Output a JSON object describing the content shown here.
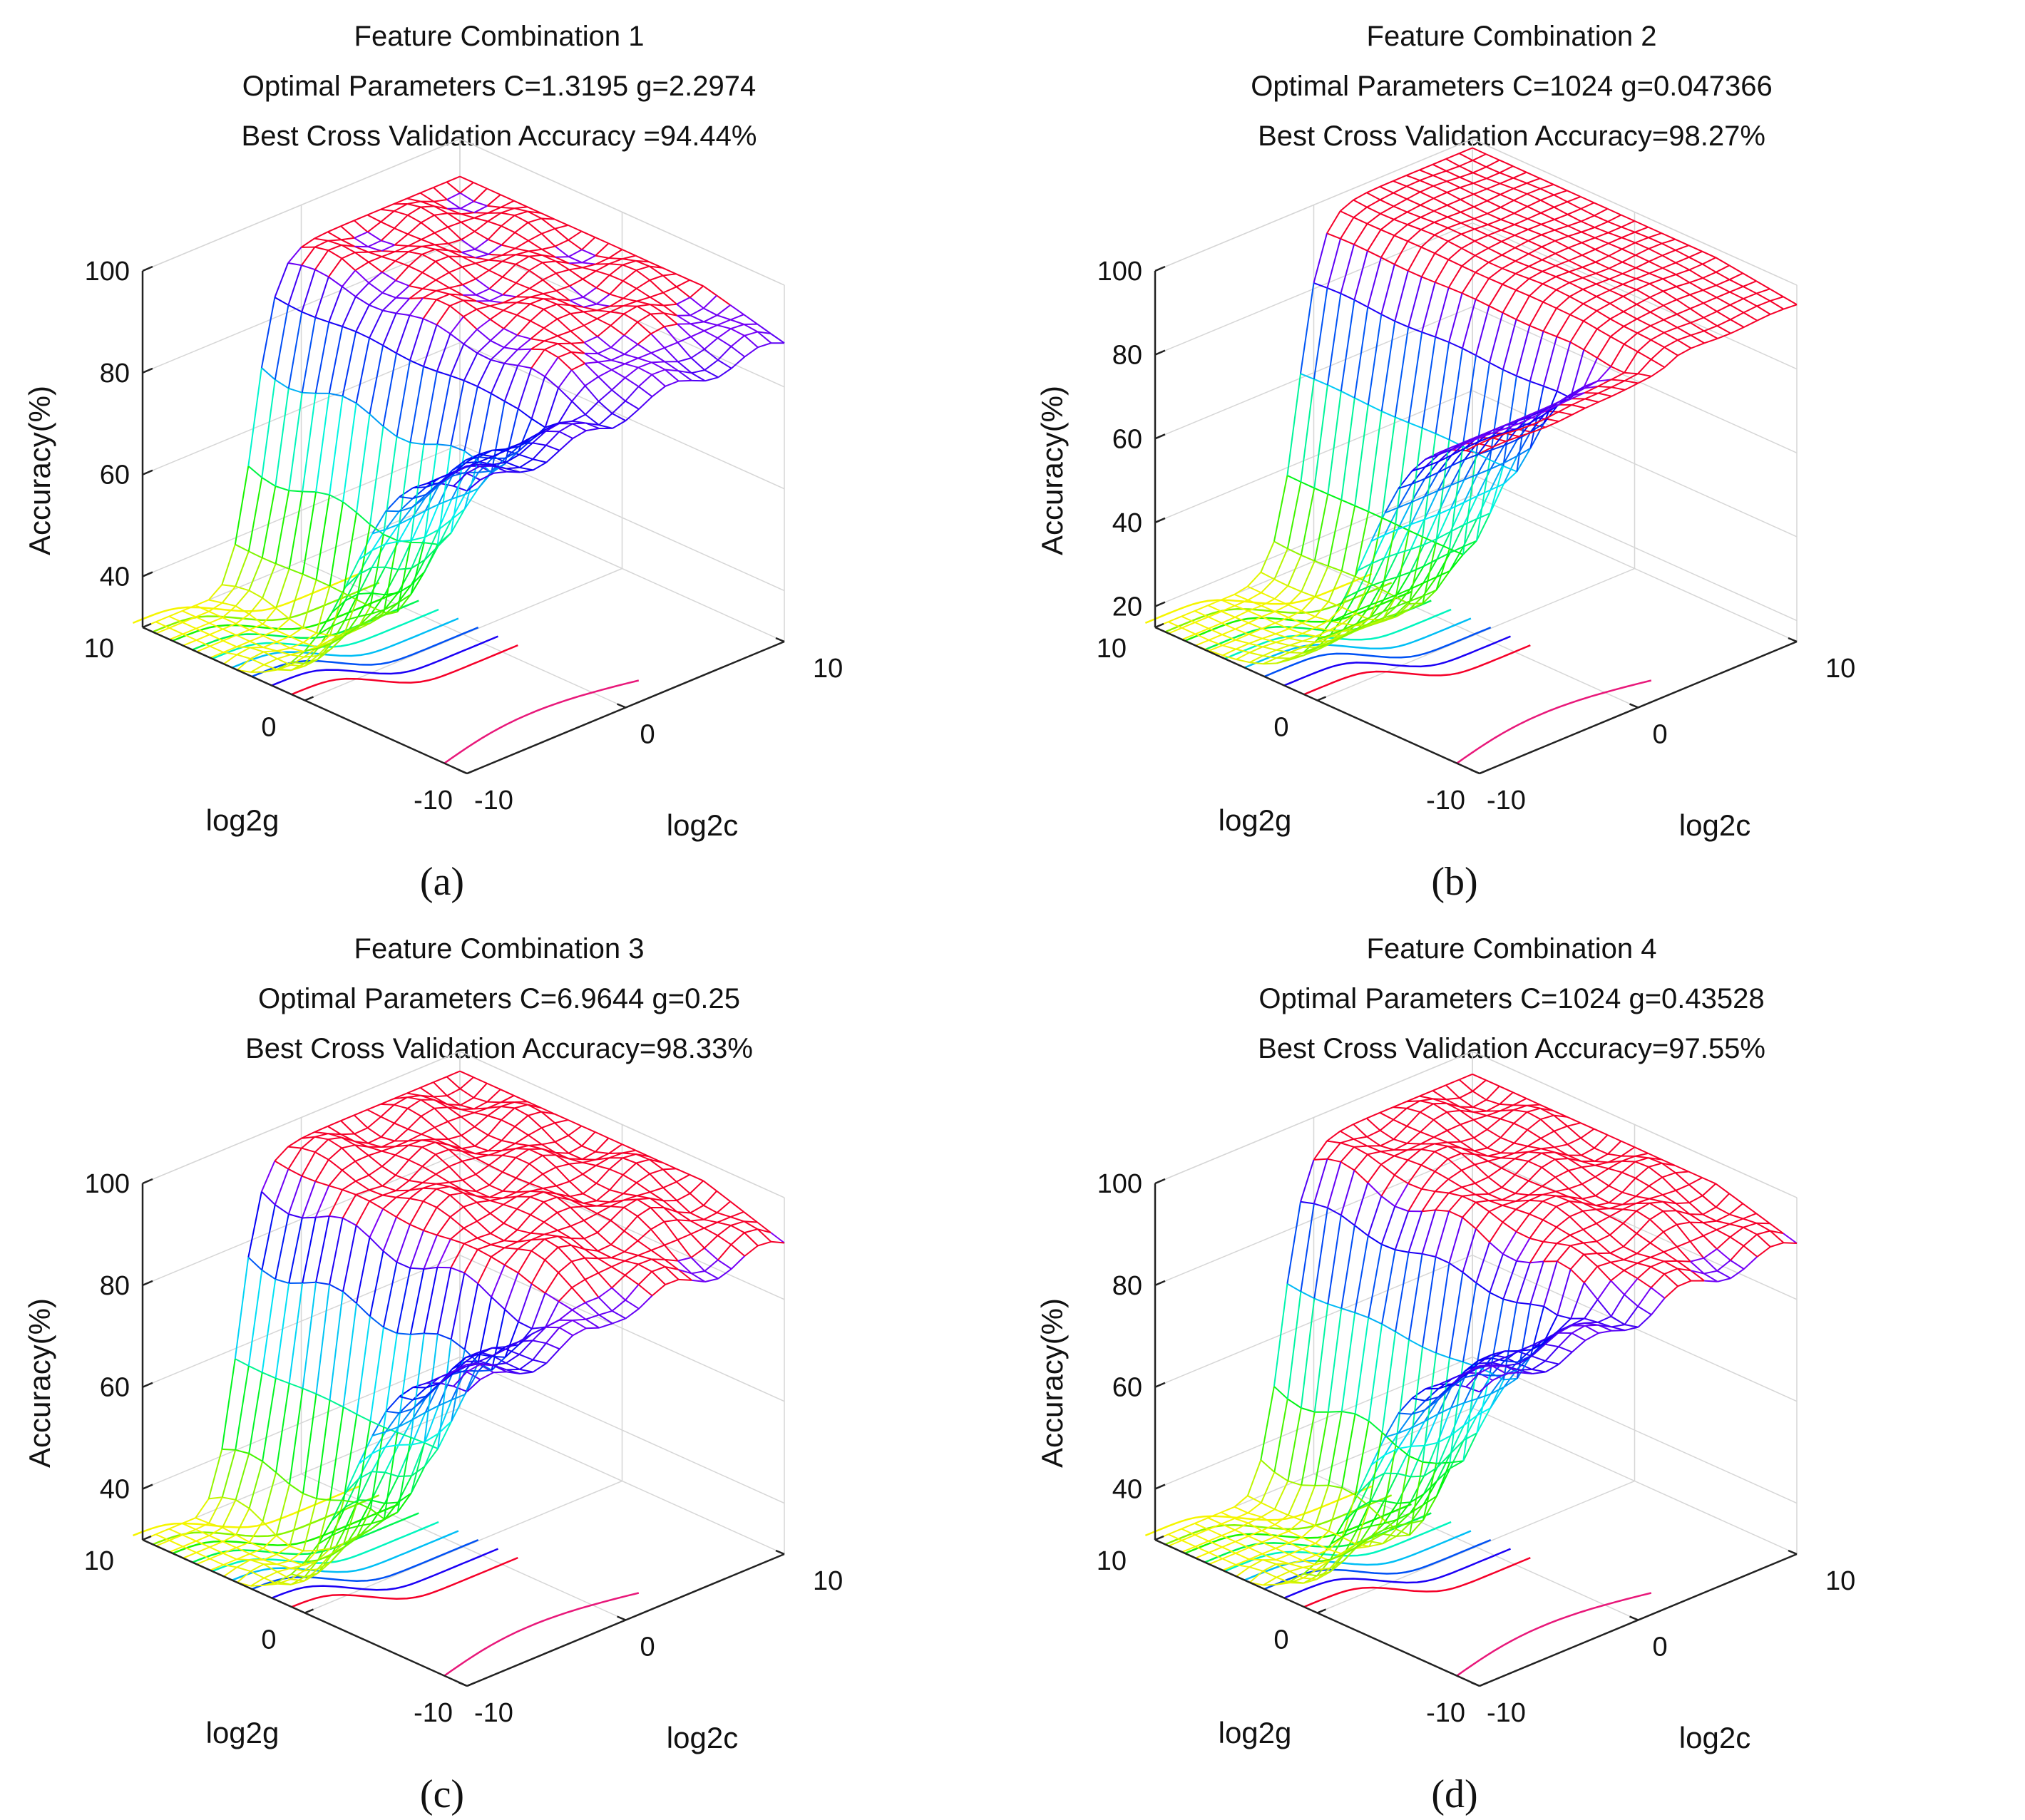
{
  "figure": {
    "panels": [
      {
        "caption": "(a)"
      },
      {
        "caption": "(b)"
      },
      {
        "caption": "(c)"
      },
      {
        "caption": "(d)"
      }
    ]
  },
  "chart_data": [
    {
      "type": "surface",
      "title": [
        "Feature Combination 1",
        "Optimal Parameters C=1.3195 g=2.2974",
        "Best Cross Validation Accuracy =94.44%"
      ],
      "xlabel": "log2c",
      "ylabel": "log2g",
      "zlabel": "Accuracy(%)",
      "x_ticks": [
        "-10",
        "0",
        "10"
      ],
      "y_ticks": [
        "10",
        "0",
        "-10"
      ],
      "z_ticks": [
        "40",
        "60",
        "80",
        "100"
      ],
      "xlim": [
        -10,
        10
      ],
      "ylim": [
        -10,
        10
      ],
      "zlim": [
        30,
        100
      ],
      "plateau": 94.44,
      "floor": 30,
      "ridge": 0.35,
      "edge_drop": 0.8,
      "ripple": 1.8
    },
    {
      "type": "surface",
      "title": [
        "Feature Combination 2",
        "Optimal Parameters C=1024 g=0.047366",
        "Best Cross Validation Accuracy=98.27%"
      ],
      "xlabel": "log2c",
      "ylabel": "log2g",
      "zlabel": "Accuracy(%)",
      "x_ticks": [
        "-10",
        "0",
        "10"
      ],
      "y_ticks": [
        "10",
        "0",
        "-10"
      ],
      "z_ticks": [
        "20",
        "40",
        "60",
        "80",
        "100"
      ],
      "xlim": [
        -10,
        10
      ],
      "ylim": [
        -10,
        10
      ],
      "zlim": [
        15,
        100
      ],
      "plateau": 98.27,
      "floor": 15,
      "ridge": 0.45,
      "edge_drop": 0.5,
      "ripple": 0.4
    },
    {
      "type": "surface",
      "title": [
        "Feature Combination 3",
        "Optimal Parameters C=6.9644 g=0.25",
        "Best Cross Validation Accuracy=98.33%"
      ],
      "xlabel": "log2c",
      "ylabel": "log2g",
      "zlabel": "Accuracy(%)",
      "x_ticks": [
        "-10",
        "0",
        "10"
      ],
      "y_ticks": [
        "10",
        "0",
        "-10"
      ],
      "z_ticks": [
        "40",
        "60",
        "80",
        "100"
      ],
      "xlim": [
        -10,
        10
      ],
      "ylim": [
        -10,
        10
      ],
      "zlim": [
        30,
        100
      ],
      "plateau": 98.33,
      "floor": 30,
      "ridge": 0.3,
      "edge_drop": 1.0,
      "ripple": 2.2
    },
    {
      "type": "surface",
      "title": [
        "Feature Combination 4",
        "Optimal Parameters C=1024 g=0.43528",
        "Best Cross Validation Accuracy=97.55%"
      ],
      "xlabel": "log2c",
      "ylabel": "log2g",
      "zlabel": "Accuracy(%)",
      "x_ticks": [
        "-10",
        "0",
        "10"
      ],
      "y_ticks": [
        "10",
        "0",
        "-10"
      ],
      "z_ticks": [
        "40",
        "60",
        "80",
        "100"
      ],
      "xlim": [
        -10,
        10
      ],
      "ylim": [
        -10,
        10
      ],
      "zlim": [
        30,
        100
      ],
      "plateau": 97.55,
      "floor": 30,
      "ridge": 0.4,
      "edge_drop": 0.9,
      "ripple": 2.0
    }
  ]
}
